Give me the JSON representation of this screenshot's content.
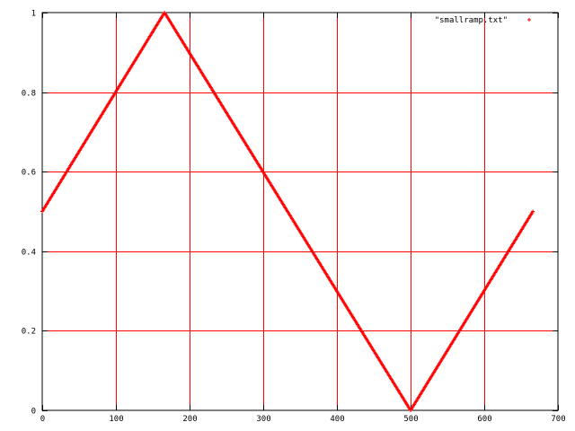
{
  "chart_data": {
    "type": "line",
    "title": "",
    "xlabel": "",
    "ylabel": "",
    "xlim": [
      0,
      700
    ],
    "ylim": [
      0,
      1
    ],
    "x_ticks": [
      0,
      100,
      200,
      300,
      400,
      500,
      600,
      700
    ],
    "y_ticks": [
      0,
      0.2,
      0.4,
      0.6,
      0.8,
      1
    ],
    "x_tick_labels": [
      "0",
      "100",
      "200",
      "300",
      "400",
      "500",
      "600",
      "700"
    ],
    "y_tick_labels": [
      "0",
      "0.2",
      "0.4",
      "0.6",
      "0.8",
      "1"
    ],
    "grid": true,
    "legend_position": "top-right",
    "series": [
      {
        "name": "\"smallramp.txt\"",
        "color": "#ff0000",
        "marker": "+",
        "x": [
          0,
          166,
          500,
          666
        ],
        "y": [
          0.5,
          1.0,
          0.0,
          0.5
        ]
      }
    ]
  }
}
